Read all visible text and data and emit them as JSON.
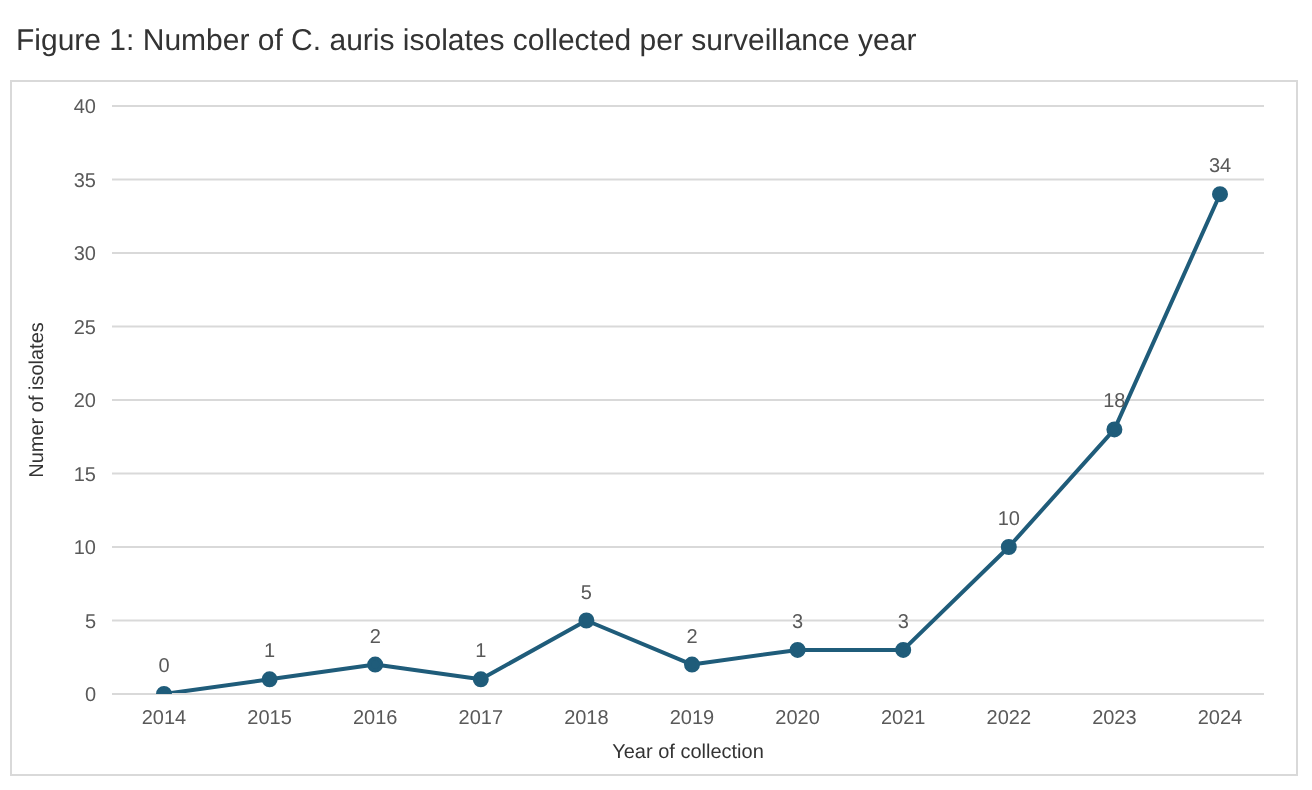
{
  "chart_data": {
    "type": "line",
    "title": "Figure 1: Number of C. auris isolates collected per surveillance year",
    "xlabel": "Year of collection",
    "ylabel": "Numer of isolates",
    "categories": [
      "2014",
      "2015",
      "2016",
      "2017",
      "2018",
      "2019",
      "2020",
      "2021",
      "2022",
      "2023",
      "2024"
    ],
    "series": [
      {
        "color": "#1f5c7a",
        "values": [
          0,
          1,
          2,
          1,
          5,
          2,
          3,
          3,
          10,
          18,
          34
        ]
      }
    ],
    "ylim": [
      0,
      40
    ],
    "yticks": [
      0,
      5,
      10,
      15,
      20,
      25,
      30,
      35,
      40
    ],
    "grid": "y",
    "marker": "circle",
    "line_style": "solid",
    "data_labels": true
  }
}
